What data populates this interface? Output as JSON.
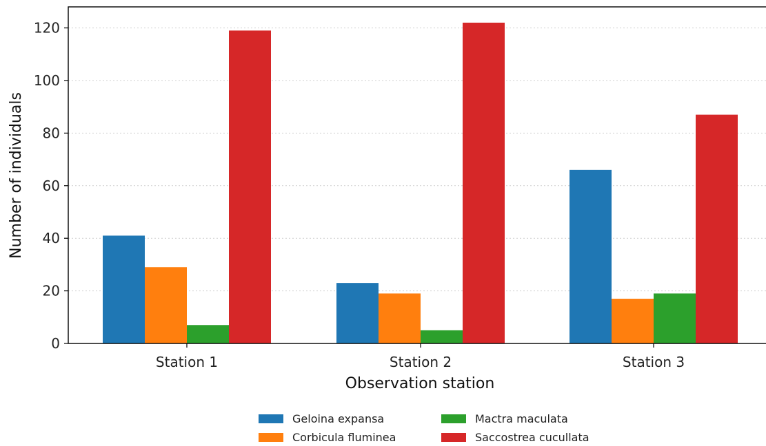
{
  "chart_data": {
    "type": "bar",
    "categories": [
      "Station 1",
      "Station 2",
      "Station 3"
    ],
    "series": [
      {
        "name": "Geloina expansa",
        "values": [
          41,
          23,
          66
        ],
        "color": "#1f77b4"
      },
      {
        "name": "Corbicula fluminea",
        "values": [
          29,
          19,
          17
        ],
        "color": "#ff7f0e"
      },
      {
        "name": "Mactra maculata",
        "values": [
          7,
          5,
          19
        ],
        "color": "#2ca02c"
      },
      {
        "name": "Saccostrea cucullata",
        "values": [
          119,
          122,
          87
        ],
        "color": "#d62728"
      }
    ],
    "xlabel": "Observation station",
    "ylabel": "Number of individuals",
    "ylim": [
      0,
      128
    ],
    "yticks": [
      0,
      20,
      40,
      60,
      80,
      100,
      120
    ],
    "grid": "horizontal dotted",
    "legend_position": "bottom-center"
  }
}
